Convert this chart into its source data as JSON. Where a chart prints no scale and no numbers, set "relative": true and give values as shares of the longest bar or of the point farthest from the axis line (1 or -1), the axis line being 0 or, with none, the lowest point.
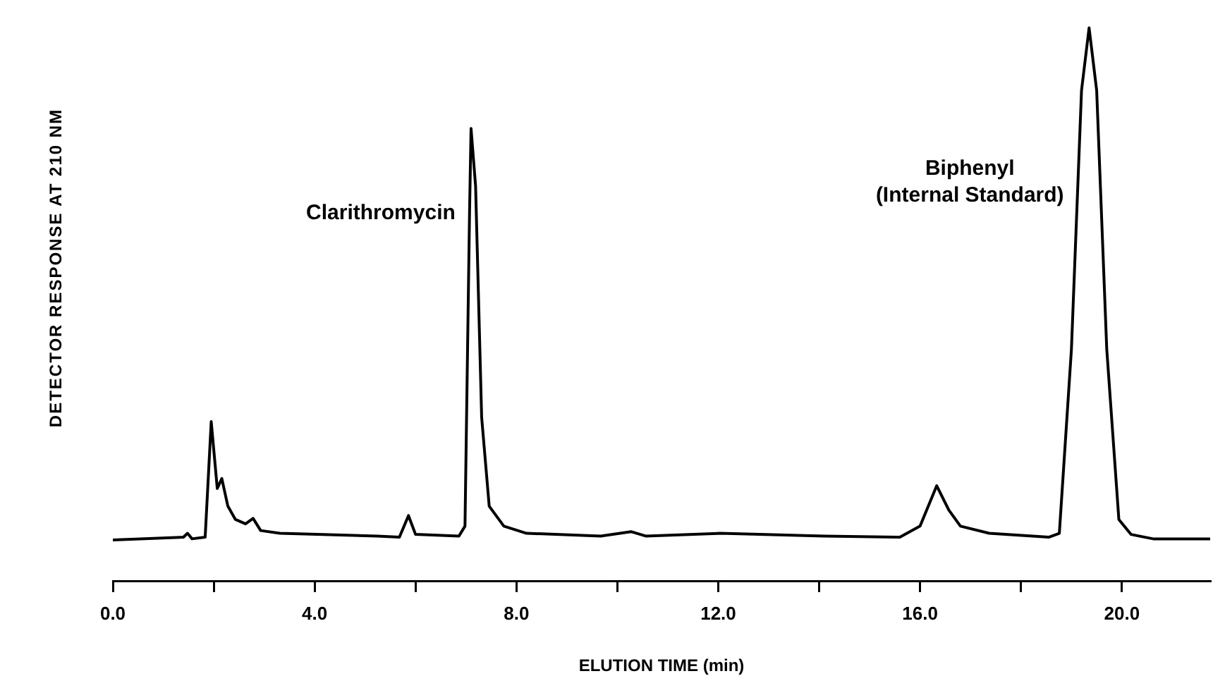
{
  "chart_data": {
    "type": "line",
    "relative": true,
    "xlabel": "ELUTION TIME (min)",
    "ylabel": "DETECTOR RESPONSE AT 210 NM",
    "annotations": [
      {
        "text": "Clarithromycin",
        "x": 7.07,
        "y": 0.665
      },
      {
        "text": "Biphenyl\n(Internal Standard)",
        "x": 19.13,
        "y": 0.72
      }
    ],
    "xlim": [
      0,
      21.75
    ],
    "xticks": [
      {
        "value": 0,
        "label": "0.0"
      },
      {
        "value": 2,
        "label": null
      },
      {
        "value": 4,
        "label": "4.0"
      },
      {
        "value": 6,
        "label": null
      },
      {
        "value": 8,
        "label": "8.0"
      },
      {
        "value": 10,
        "label": null
      },
      {
        "value": 12,
        "label": "12.0"
      },
      {
        "value": 14,
        "label": null
      },
      {
        "value": 16,
        "label": "16.0"
      },
      {
        "value": 18,
        "label": null
      },
      {
        "value": 20,
        "label": "20.0"
      }
    ],
    "tick_labels": "x",
    "grid": false,
    "legend": false,
    "marker": "none",
    "line_style": "solid",
    "series": [
      {
        "color": "#000000",
        "x": [
          0.0,
          1.4,
          1.48,
          1.57,
          1.83,
          1.95,
          2.07,
          2.16,
          2.28,
          2.43,
          2.63,
          2.78,
          2.93,
          3.31,
          4.05,
          5.24,
          5.68,
          5.86,
          6.0,
          6.86,
          6.98,
          7.07,
          7.1,
          7.19,
          7.31,
          7.46,
          7.75,
          8.2,
          9.67,
          10.27,
          10.56,
          12.04,
          14.1,
          15.6,
          16.0,
          16.33,
          16.57,
          16.8,
          17.37,
          18.55,
          18.76,
          19.0,
          19.2,
          19.35,
          19.5,
          19.7,
          19.94,
          20.18,
          20.62,
          21.75
        ],
        "values": [
          0.074,
          0.079,
          0.086,
          0.076,
          0.079,
          0.288,
          0.167,
          0.185,
          0.135,
          0.111,
          0.103,
          0.113,
          0.091,
          0.086,
          0.084,
          0.081,
          0.079,
          0.118,
          0.084,
          0.081,
          0.099,
          0.665,
          0.818,
          0.714,
          0.296,
          0.135,
          0.099,
          0.086,
          0.081,
          0.089,
          0.081,
          0.086,
          0.081,
          0.079,
          0.099,
          0.172,
          0.128,
          0.099,
          0.086,
          0.079,
          0.086,
          0.419,
          0.887,
          1.0,
          0.887,
          0.419,
          0.111,
          0.084,
          0.076,
          0.076
        ]
      }
    ]
  }
}
